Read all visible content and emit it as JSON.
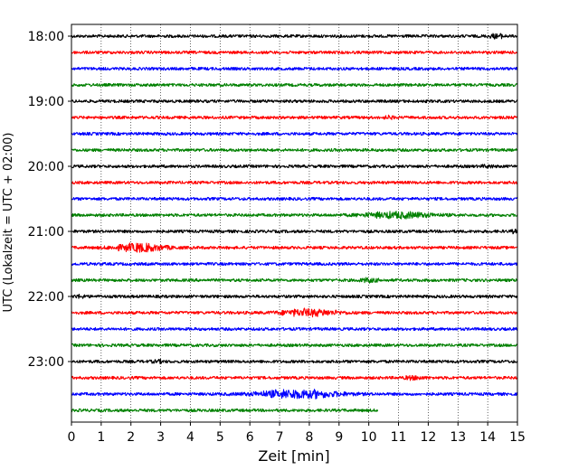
{
  "chart_data": {
    "type": "line",
    "title": "",
    "xlabel": "Zeit  [min]",
    "ylabel": "UTC (Lokalzeit = UTC + 02:00)",
    "xlim": [
      0,
      15
    ],
    "x_ticks": [
      0,
      1,
      2,
      3,
      4,
      5,
      6,
      7,
      8,
      9,
      10,
      11,
      12,
      13,
      14,
      15
    ],
    "y_ticks": [
      "18:00",
      "19:00",
      "20:00",
      "21:00",
      "22:00",
      "23:00"
    ],
    "grid": "vertical dotted",
    "trace_interval_min": 15,
    "start_time": "18:00",
    "color_cycle": [
      "#000000",
      "#ff0000",
      "#0000ff",
      "#008000"
    ],
    "traces": [
      {
        "time": "18:00",
        "color": "#000000",
        "end_min": 15,
        "bursts": [
          {
            "center_min": 14.3,
            "width_min": 0.5,
            "amp": 2.2
          }
        ]
      },
      {
        "time": "18:15",
        "color": "#ff0000",
        "end_min": 15,
        "bursts": []
      },
      {
        "time": "18:30",
        "color": "#0000ff",
        "end_min": 15,
        "bursts": []
      },
      {
        "time": "18:45",
        "color": "#008000",
        "end_min": 15,
        "bursts": []
      },
      {
        "time": "19:00",
        "color": "#000000",
        "end_min": 15,
        "bursts": []
      },
      {
        "time": "19:15",
        "color": "#ff0000",
        "end_min": 15,
        "bursts": [
          {
            "center_min": 10.7,
            "width_min": 0.4,
            "amp": 1.2
          }
        ]
      },
      {
        "time": "19:30",
        "color": "#0000ff",
        "end_min": 15,
        "bursts": []
      },
      {
        "time": "19:45",
        "color": "#008000",
        "end_min": 15,
        "bursts": []
      },
      {
        "time": "20:00",
        "color": "#000000",
        "end_min": 15,
        "bursts": [
          {
            "center_min": 14.0,
            "width_min": 0.4,
            "amp": 1.2
          }
        ]
      },
      {
        "time": "20:15",
        "color": "#ff0000",
        "end_min": 15,
        "bursts": []
      },
      {
        "time": "20:30",
        "color": "#0000ff",
        "end_min": 15,
        "bursts": []
      },
      {
        "time": "20:45",
        "color": "#008000",
        "end_min": 15,
        "bursts": [
          {
            "center_min": 11.0,
            "width_min": 2.2,
            "amp": 3.2
          }
        ]
      },
      {
        "time": "21:00",
        "color": "#000000",
        "end_min": 15,
        "bursts": [
          {
            "center_min": 14.9,
            "width_min": 0.2,
            "amp": 1.5
          }
        ]
      },
      {
        "time": "21:15",
        "color": "#ff0000",
        "end_min": 15,
        "bursts": [
          {
            "center_min": 2.3,
            "width_min": 1.6,
            "amp": 4.5
          }
        ]
      },
      {
        "time": "21:30",
        "color": "#0000ff",
        "end_min": 15,
        "bursts": []
      },
      {
        "time": "21:45",
        "color": "#008000",
        "end_min": 15,
        "bursts": [
          {
            "center_min": 10.0,
            "width_min": 0.6,
            "amp": 2.0
          }
        ]
      },
      {
        "time": "22:00",
        "color": "#000000",
        "end_min": 15,
        "bursts": [
          {
            "center_min": 0.3,
            "width_min": 0.4,
            "amp": 1.3
          }
        ]
      },
      {
        "time": "22:15",
        "color": "#ff0000",
        "end_min": 15,
        "bursts": [
          {
            "center_min": 8.0,
            "width_min": 1.8,
            "amp": 3.8
          }
        ]
      },
      {
        "time": "22:30",
        "color": "#0000ff",
        "end_min": 15,
        "bursts": []
      },
      {
        "time": "22:45",
        "color": "#008000",
        "end_min": 15,
        "bursts": []
      },
      {
        "time": "23:00",
        "color": "#000000",
        "end_min": 15,
        "bursts": [
          {
            "center_min": 2.9,
            "width_min": 0.4,
            "amp": 1.2
          }
        ]
      },
      {
        "time": "23:15",
        "color": "#ff0000",
        "end_min": 15,
        "bursts": [
          {
            "center_min": 11.5,
            "width_min": 0.6,
            "amp": 1.8
          }
        ]
      },
      {
        "time": "23:30",
        "color": "#0000ff",
        "end_min": 15,
        "bursts": [
          {
            "center_min": 7.6,
            "width_min": 2.6,
            "amp": 4.8
          }
        ]
      },
      {
        "time": "23:45",
        "color": "#008000",
        "end_min": 10.3,
        "bursts": []
      }
    ]
  }
}
